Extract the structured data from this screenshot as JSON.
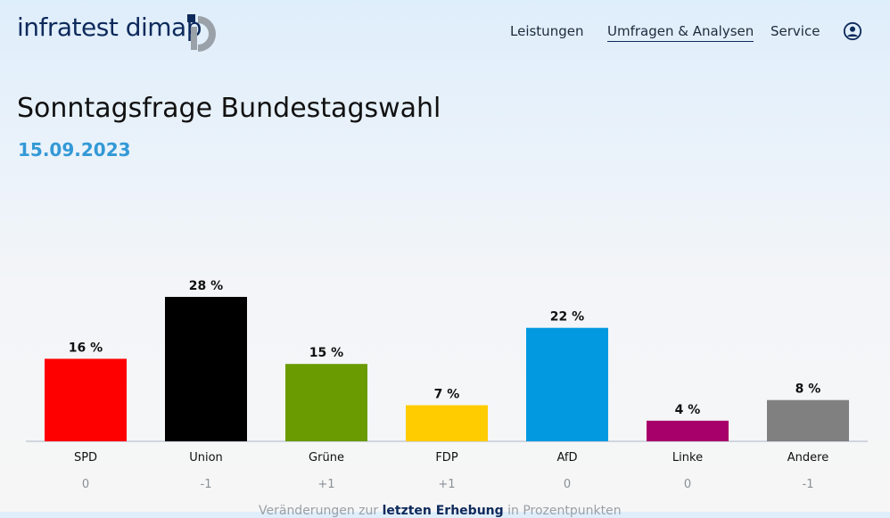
{
  "brand": {
    "name": "infratest dimap"
  },
  "nav": {
    "items": [
      "Leistungen",
      "Umfragen & Analysen",
      "Service"
    ],
    "user_icon": "user-circle-icon"
  },
  "page": {
    "title": "Sonntagsfrage Bundestagswahl",
    "date": "15.09.2023"
  },
  "chart_data": {
    "type": "bar",
    "title": "Sonntagsfrage Bundestagswahl",
    "categories": [
      "SPD",
      "Union",
      "Grüne",
      "FDP",
      "AfD",
      "Linke",
      "Andere"
    ],
    "values": [
      16,
      28,
      15,
      7,
      22,
      4,
      8
    ],
    "value_labels": [
      "16 %",
      "28 %",
      "15 %",
      "7 %",
      "22 %",
      "4 %",
      "8 %"
    ],
    "changes": [
      "0",
      "-1",
      "+1",
      "+1",
      "0",
      "0",
      "-1"
    ],
    "colors": [
      "#ff0000",
      "#000000",
      "#6a9b00",
      "#ffcc00",
      "#0299e0",
      "#a8006b",
      "#808080"
    ],
    "ylim": [
      0,
      28
    ]
  },
  "footnote": {
    "prefix": "Veränderungen zur",
    "link": "letzten Erhebung",
    "suffix": "in Prozentpunkten"
  }
}
